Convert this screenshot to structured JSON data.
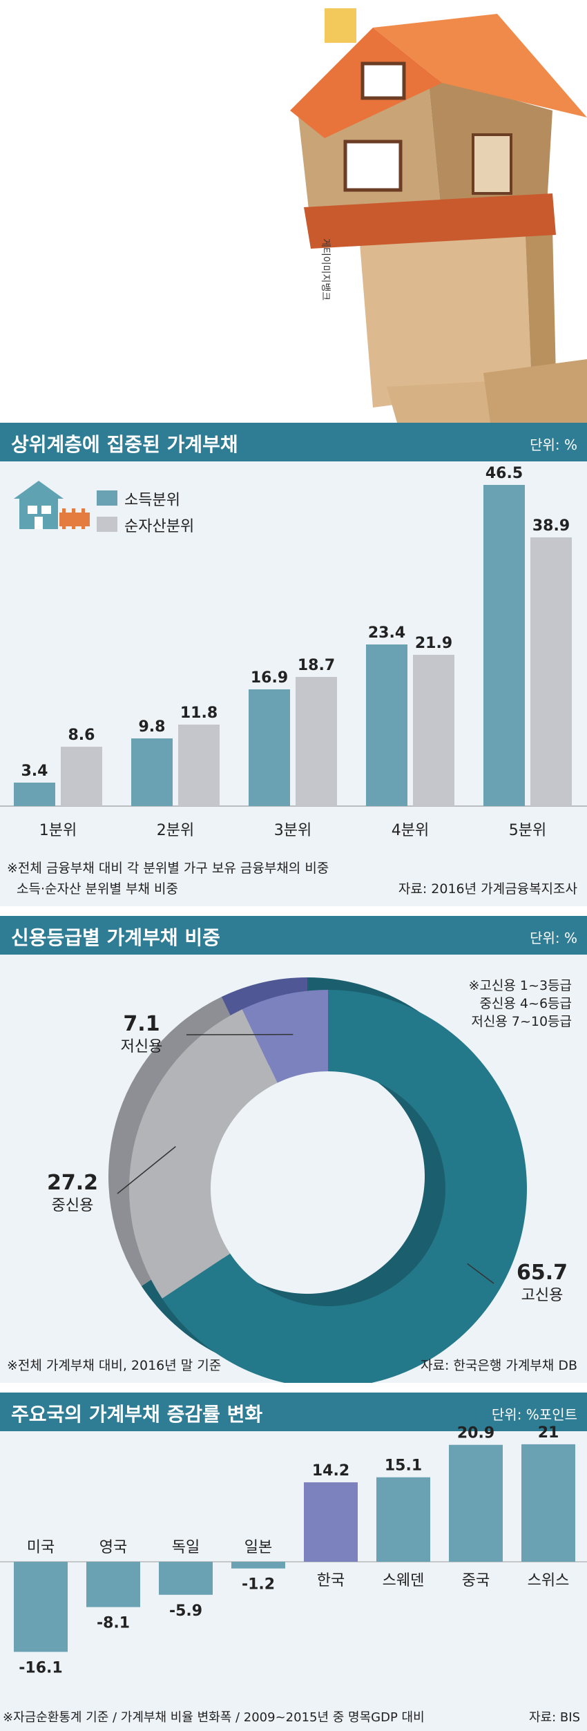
{
  "photo": {
    "credit": "게티이미지뱅크"
  },
  "colors": {
    "teal": "#6aa2b3",
    "gray": "#c4c6cb",
    "header": "#2f7d94",
    "purple": "#7b82bd",
    "darkteal": "#23788a"
  },
  "section1": {
    "title": "상위계층에 집중된 가계부채",
    "unit": "단위: %",
    "note1": "※전체 금융부채 대비 각 분위별 가구 보유 금융부채의 비중",
    "note2": "소득·순자산 분위별 부채 비중",
    "source": "자료: 2016년 가계금융복지조사"
  },
  "section2": {
    "title": "신용등급별 가계부채 비중",
    "unit": "단위: %",
    "grade_notes": [
      "※고신용 1~3등급",
      "중신용 4~6등급",
      "저신용 7~10등급"
    ],
    "note": "※전체 가계부채 대비, 2016년 말 기준",
    "source": "자료: 한국은행 가계부채 DB"
  },
  "section3": {
    "title": "주요국의 가계부채 증감률 변화",
    "unit": "단위: %포인트",
    "note": "※자금순환통계 기준 / 가계부채 비율 변화폭 / 2009~2015년 중 명목GDP 대비",
    "source": "자료: BIS"
  },
  "chart_data": [
    {
      "type": "bar",
      "title": "상위계층에 집중된 가계부채",
      "categories": [
        "1분위",
        "2분위",
        "3분위",
        "4분위",
        "5분위"
      ],
      "series": [
        {
          "name": "소득분위",
          "values": [
            3.4,
            9.8,
            16.9,
            23.4,
            46.5
          ]
        },
        {
          "name": "순자산분위",
          "values": [
            8.6,
            11.8,
            18.7,
            21.9,
            38.9
          ]
        }
      ],
      "ylim": [
        0,
        46.5
      ],
      "grid": false,
      "legend": "top-left"
    },
    {
      "type": "pie",
      "title": "신용등급별 가계부채 비중",
      "categories": [
        "고신용",
        "중신용",
        "저신용"
      ],
      "values": [
        65.7,
        27.2,
        7.1
      ],
      "donut": true
    },
    {
      "type": "bar",
      "title": "주요국의 가계부채 증감률 변화",
      "categories": [
        "미국",
        "영국",
        "독일",
        "일본",
        "한국",
        "스웨덴",
        "중국",
        "스위스"
      ],
      "values": [
        -16.1,
        -8.1,
        -5.9,
        -1.2,
        14.2,
        15.1,
        20.9,
        21
      ],
      "highlight": "한국",
      "ylim": [
        -16.1,
        21
      ],
      "grid": false
    }
  ]
}
